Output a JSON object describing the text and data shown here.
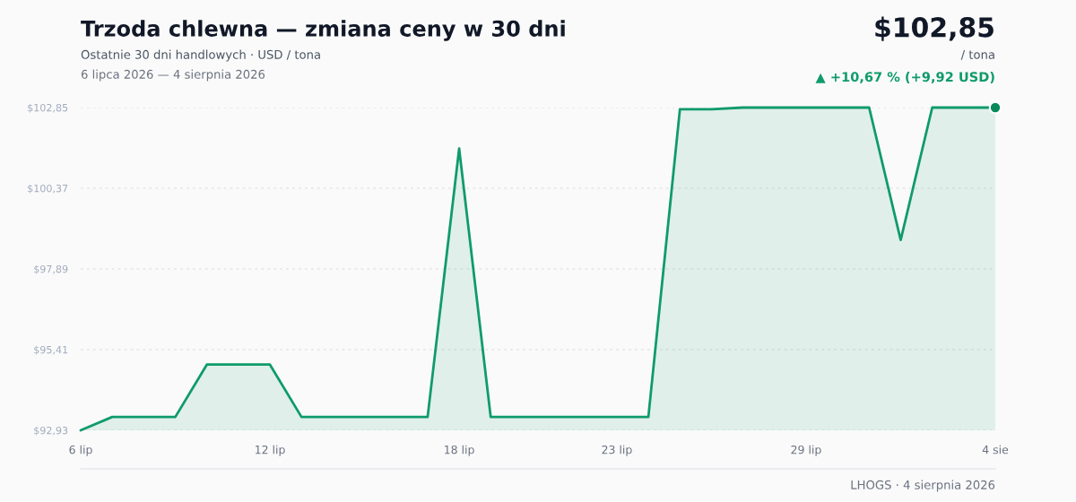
{
  "chart_data": {
    "type": "area",
    "title": "Trzoda chlewna — zmiana ceny w 30 dni",
    "subtitle": "Ostatnie 30 dni handlowych · USD / tona",
    "annotations": [
      "6 lipca 2026 — 4 sierpnia 2026",
      "$102,85",
      "/ tona",
      "▲ +10,67 % (+9,92 USD)",
      "LHOGS · 4 sierpnia 2026"
    ],
    "categories": [
      "6 lip",
      null,
      null,
      null,
      null,
      null,
      "12 lip",
      null,
      null,
      null,
      null,
      null,
      "18 lip",
      null,
      null,
      null,
      null,
      "23 lip",
      null,
      null,
      null,
      null,
      null,
      "29 lip",
      null,
      null,
      null,
      null,
      null,
      "4 sie"
    ],
    "series": [
      {
        "color": "#0f9b6a",
        "values": [
          92.93,
          93.34,
          93.34,
          93.34,
          94.95,
          94.95,
          94.95,
          93.34,
          93.34,
          93.34,
          93.34,
          93.34,
          101.59,
          93.34,
          93.34,
          93.34,
          93.34,
          93.34,
          93.34,
          102.8,
          102.8,
          102.85,
          102.85,
          102.85,
          102.85,
          102.85,
          98.78,
          102.85,
          102.85,
          102.85
        ]
      },
      {
        "type": "scatter",
        "color": "#08895b",
        "x": [
          "4 sie"
        ],
        "values": [
          102.85
        ]
      }
    ],
    "ylim": [
      92.93,
      102.85
    ],
    "yticks": [
      {
        "value": 92.93,
        "label": "$92,93"
      },
      {
        "value": 95.41,
        "label": "$95,41"
      },
      {
        "value": 97.89,
        "label": "$97,89"
      },
      {
        "value": 100.37,
        "label": "$100,37"
      },
      {
        "value": 102.85,
        "label": "$102,85"
      }
    ],
    "grid": "y"
  }
}
